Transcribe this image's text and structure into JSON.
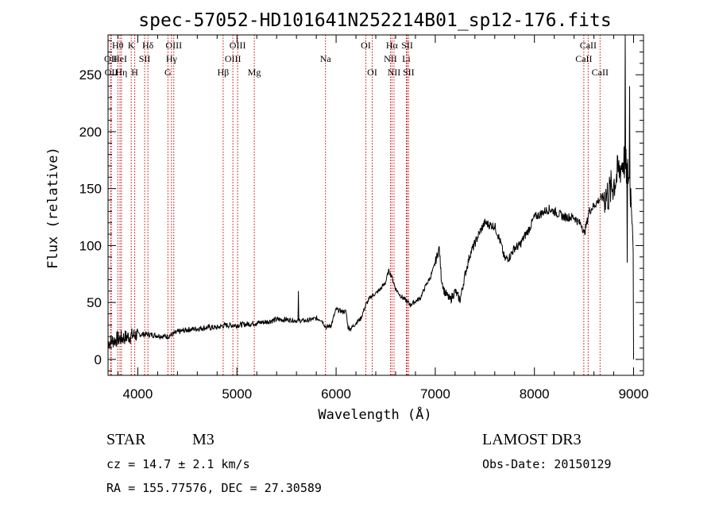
{
  "chart_data": {
    "type": "line",
    "title": "spec-57052-HD101641N252214B01_sp12-176.fits",
    "xlabel": "Wavelength (Å)",
    "ylabel": "Flux (relative)",
    "xlim": [
      3700,
      9100
    ],
    "ylim": [
      -14,
      285
    ],
    "x_ticks": [
      4000,
      5000,
      6000,
      7000,
      8000,
      9000
    ],
    "y_ticks": [
      0,
      50,
      100,
      150,
      200,
      250
    ],
    "x_tick_labels": [
      "4000",
      "5000",
      "6000",
      "7000",
      "8000",
      "9000"
    ],
    "y_tick_labels": [
      "0",
      "50",
      "100",
      "150",
      "200",
      "250"
    ],
    "spectrum_anchor_points": [
      [
        3700,
        15
      ],
      [
        3800,
        18
      ],
      [
        3900,
        20
      ],
      [
        4000,
        22
      ],
      [
        4100,
        22
      ],
      [
        4200,
        21
      ],
      [
        4300,
        20
      ],
      [
        4400,
        24
      ],
      [
        4500,
        26
      ],
      [
        4600,
        27
      ],
      [
        4700,
        28
      ],
      [
        4800,
        28
      ],
      [
        4880,
        30
      ],
      [
        5000,
        30
      ],
      [
        5100,
        31
      ],
      [
        5200,
        32
      ],
      [
        5300,
        33
      ],
      [
        5400,
        35
      ],
      [
        5500,
        35
      ],
      [
        5600,
        34
      ],
      [
        5700,
        34
      ],
      [
        5800,
        36
      ],
      [
        5850,
        35
      ],
      [
        5900,
        28
      ],
      [
        5950,
        30
      ],
      [
        6000,
        44
      ],
      [
        6060,
        42
      ],
      [
        6100,
        42
      ],
      [
        6120,
        28
      ],
      [
        6150,
        27
      ],
      [
        6200,
        32
      ],
      [
        6250,
        36
      ],
      [
        6300,
        48
      ],
      [
        6350,
        55
      ],
      [
        6400,
        58
      ],
      [
        6450,
        62
      ],
      [
        6500,
        68
      ],
      [
        6530,
        78
      ],
      [
        6560,
        73
      ],
      [
        6600,
        62
      ],
      [
        6650,
        56
      ],
      [
        6700,
        52
      ],
      [
        6750,
        48
      ],
      [
        6800,
        51
      ],
      [
        6850,
        54
      ],
      [
        6900,
        64
      ],
      [
        6950,
        72
      ],
      [
        6990,
        82
      ],
      [
        7040,
        98
      ],
      [
        7060,
        72
      ],
      [
        7090,
        60
      ],
      [
        7150,
        52
      ],
      [
        7200,
        60
      ],
      [
        7250,
        52
      ],
      [
        7300,
        74
      ],
      [
        7350,
        92
      ],
      [
        7400,
        102
      ],
      [
        7450,
        112
      ],
      [
        7500,
        120
      ],
      [
        7550,
        118
      ],
      [
        7600,
        117
      ],
      [
        7630,
        110
      ],
      [
        7660,
        102
      ],
      [
        7700,
        88
      ],
      [
        7750,
        90
      ],
      [
        7800,
        98
      ],
      [
        7850,
        100
      ],
      [
        7900,
        108
      ],
      [
        7950,
        115
      ],
      [
        8000,
        125
      ],
      [
        8050,
        127
      ],
      [
        8100,
        130
      ],
      [
        8150,
        132
      ],
      [
        8200,
        130
      ],
      [
        8300,
        125
      ],
      [
        8400,
        125
      ],
      [
        8450,
        120
      ],
      [
        8480,
        118
      ],
      [
        8500,
        110
      ],
      [
        8530,
        120
      ],
      [
        8550,
        130
      ],
      [
        8600,
        135
      ],
      [
        8650,
        140
      ],
      [
        8700,
        143
      ],
      [
        8750,
        145
      ],
      [
        8800,
        155
      ],
      [
        8850,
        165
      ],
      [
        8900,
        175
      ],
      [
        8950,
        160
      ],
      [
        8980,
        140
      ],
      [
        9000,
        100
      ]
    ],
    "spikes": [
      {
        "x": 5620,
        "y": 60
      },
      {
        "x": 8915,
        "y": 290
      },
      {
        "x": 8935,
        "y": 85
      },
      {
        "x": 8960,
        "y": 240
      },
      {
        "x": 9000,
        "y": 0
      }
    ],
    "line_markers": [
      {
        "label": "Hθ",
        "x": 3798,
        "row": 0
      },
      {
        "label": "OII",
        "x": 3727,
        "row": 1
      },
      {
        "label": "OII",
        "x": 3732,
        "row": 2
      },
      {
        "label": "HeI",
        "x": 3820,
        "row": 1
      },
      {
        "label": "Hη",
        "x": 3835,
        "row": 2
      },
      {
        "label": "K",
        "x": 3934,
        "row": 0
      },
      {
        "label": "SII",
        "x": 4069,
        "row": 1
      },
      {
        "label": "H",
        "x": 3969,
        "row": 2
      },
      {
        "label": "Hδ",
        "x": 4102,
        "row": 0
      },
      {
        "label": "OIII",
        "x": 4363,
        "row": 0
      },
      {
        "label": "Hγ",
        "x": 4340,
        "row": 1
      },
      {
        "label": "G",
        "x": 4304,
        "row": 2
      },
      {
        "label": "Hβ",
        "x": 4861,
        "row": 2
      },
      {
        "label": "OIII",
        "x": 5007,
        "row": 0
      },
      {
        "label": "OIII",
        "x": 4959,
        "row": 1
      },
      {
        "label": "Mg",
        "x": 5175,
        "row": 2
      },
      {
        "label": "Na",
        "x": 5893,
        "row": 1
      },
      {
        "label": "OI",
        "x": 6300,
        "row": 0
      },
      {
        "label": "OI",
        "x": 6364,
        "row": 2
      },
      {
        "label": "Hα",
        "x": 6563,
        "row": 0
      },
      {
        "label": "NII",
        "x": 6548,
        "row": 1
      },
      {
        "label": "NII",
        "x": 6584,
        "row": 2
      },
      {
        "label": "SII",
        "x": 6717,
        "row": 0
      },
      {
        "label": "Li",
        "x": 6708,
        "row": 1
      },
      {
        "label": "SII",
        "x": 6731,
        "row": 2
      },
      {
        "label": "CaII",
        "x": 8542,
        "row": 0
      },
      {
        "label": "CaII",
        "x": 8498,
        "row": 1
      },
      {
        "label": "CaII",
        "x": 8662,
        "row": 2
      }
    ]
  },
  "info": {
    "class": "STAR",
    "subclass": "M3",
    "survey": "LAMOST DR3",
    "cz": "cz = 14.7 ± 2.1 km/s",
    "obs_date": "Obs-Date: 20150129",
    "coords": "RA = 155.77576, DEC =  27.30589"
  },
  "colors": {
    "axis": "#000000",
    "spectrum": "#000000",
    "marker_line": "#cc0000",
    "background": "#ffffff"
  }
}
